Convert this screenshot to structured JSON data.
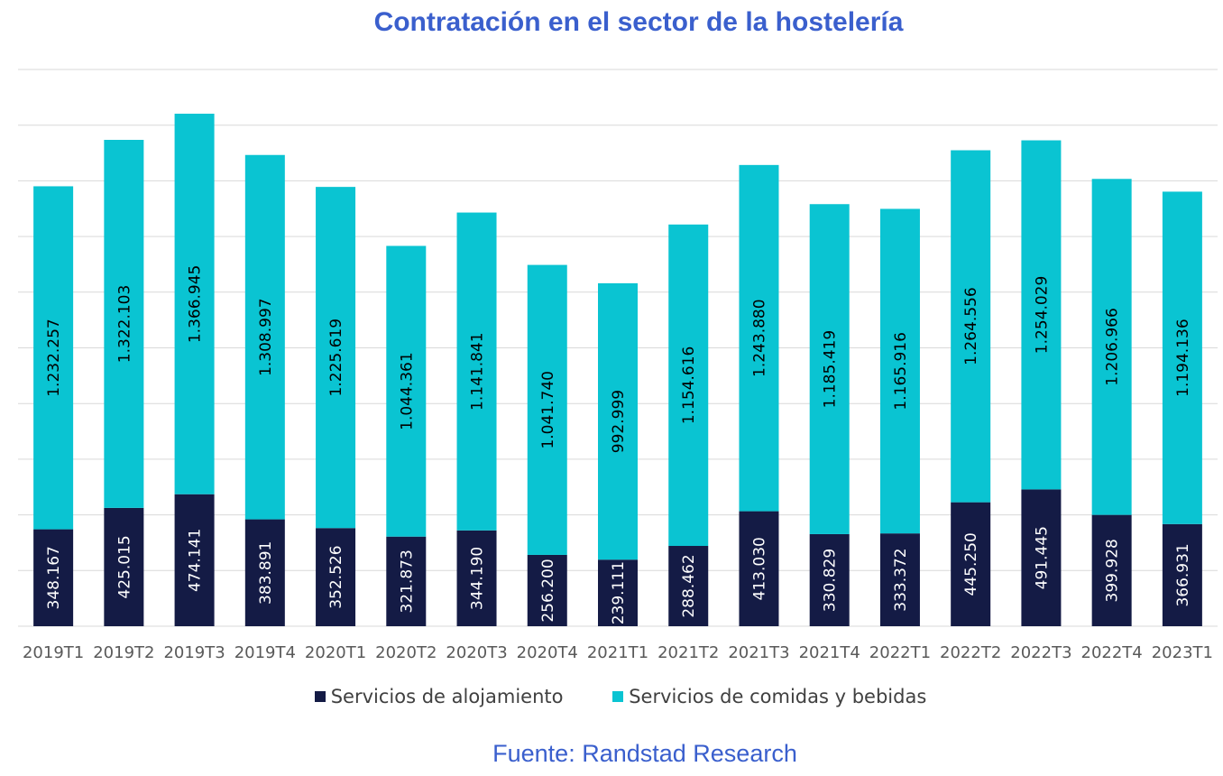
{
  "chart_data": {
    "type": "bar",
    "stacked": true,
    "title": "Contratación en el sector de la hostelería",
    "categories": [
      "2019T1",
      "2019T2",
      "2019T3",
      "2019T4",
      "2020T1",
      "2020T2",
      "2020T3",
      "2020T4",
      "2021T1",
      "2021T2",
      "2021T3",
      "2021T4",
      "2022T1",
      "2022T2",
      "2022T3",
      "2022T4",
      "2023T1"
    ],
    "series": [
      {
        "name": "Servicios de alojamiento",
        "color": "#141b45",
        "values": [
          348167,
          425015,
          474141,
          383891,
          352526,
          321873,
          344190,
          256200,
          239111,
          288462,
          413030,
          330829,
          333372,
          445250,
          491445,
          399928,
          366931
        ],
        "labels": [
          "348.167",
          "425.015",
          "474.141",
          "383.891",
          "352.526",
          "321.873",
          "344.190",
          "256.200",
          "239.111",
          "288.462",
          "413.030",
          "330.829",
          "333.372",
          "445.250",
          "491.445",
          "399.928",
          "366.931"
        ]
      },
      {
        "name": "Servicios de comidas y bebidas",
        "color": "#0ac4d2",
        "values": [
          1232257,
          1322103,
          1366945,
          1308997,
          1225619,
          1044361,
          1141841,
          1041740,
          992999,
          1154616,
          1243880,
          1185419,
          1165916,
          1264556,
          1254029,
          1206966,
          1194136
        ],
        "labels": [
          "1.232.257",
          "1.322.103",
          "1.366.945",
          "1.308.997",
          "1.225.619",
          "1.044.361",
          "1.141.841",
          "1.041.740",
          "992.999",
          "1.154.616",
          "1.243.880",
          "1.185.419",
          "1.165.916",
          "1.264.556",
          "1.254.029",
          "1.206.966",
          "1.194.136"
        ]
      }
    ],
    "ylim": [
      0,
      2000000
    ],
    "ytick_step": 200000,
    "grid": true,
    "legend_position": "bottom",
    "xlabel": "",
    "ylabel": ""
  },
  "source": "Fuente: Randstad Research",
  "colors": {
    "title": "#3a5fcd",
    "grid": "#d9d9d9",
    "axis_text": "#595959",
    "label_dark": "#ffffff",
    "label_light": "#000000"
  }
}
